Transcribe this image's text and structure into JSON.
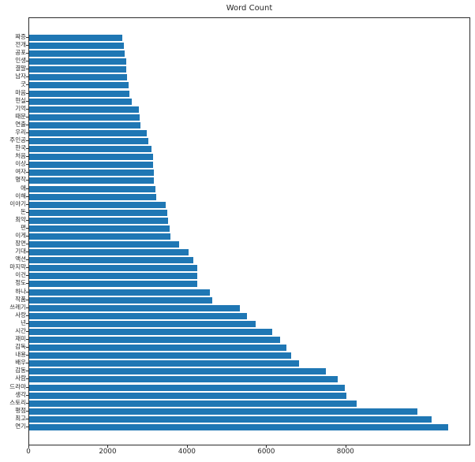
{
  "title": "Word Count",
  "chart_data": {
    "type": "bar",
    "orientation": "horizontal",
    "title": "Word Count",
    "xlabel": "",
    "ylabel": "",
    "grid": false,
    "legend": null,
    "bar_color": "#1f77b4",
    "xlim": [
      0,
      11150
    ],
    "x_ticks": [
      0,
      2000,
      4000,
      6000,
      8000
    ],
    "categories": [
      "짜증",
      "전개",
      "공포",
      "인생",
      "결말",
      "남자",
      "굿",
      "마음",
      "현실",
      "기억",
      "때문",
      "연출",
      "우리",
      "주인공",
      "한국",
      "처음",
      "이상",
      "여자",
      "명작",
      "애",
      "이해",
      "이야기",
      "돈",
      "최악",
      "편",
      "이게",
      "장면",
      "기대",
      "액션",
      "마지막",
      "이건",
      "정도",
      "하나",
      "작품",
      "쓰레기",
      "사랑",
      "년",
      "시간",
      "재미",
      "감독",
      "내용",
      "배우",
      "감동",
      "사람",
      "드라마",
      "생각",
      "스토리",
      "평점",
      "최고",
      "연기"
    ],
    "values": [
      2350,
      2380,
      2410,
      2440,
      2450,
      2470,
      2510,
      2530,
      2580,
      2770,
      2790,
      2800,
      2970,
      3000,
      3080,
      3120,
      3130,
      3140,
      3150,
      3190,
      3200,
      3440,
      3480,
      3510,
      3550,
      3560,
      3790,
      4030,
      4150,
      4240,
      4250,
      4250,
      4560,
      4620,
      5310,
      5490,
      5710,
      6140,
      6340,
      6500,
      6620,
      6810,
      7490,
      7780,
      7960,
      8000,
      8260,
      9800,
      10150,
      10570
    ]
  }
}
